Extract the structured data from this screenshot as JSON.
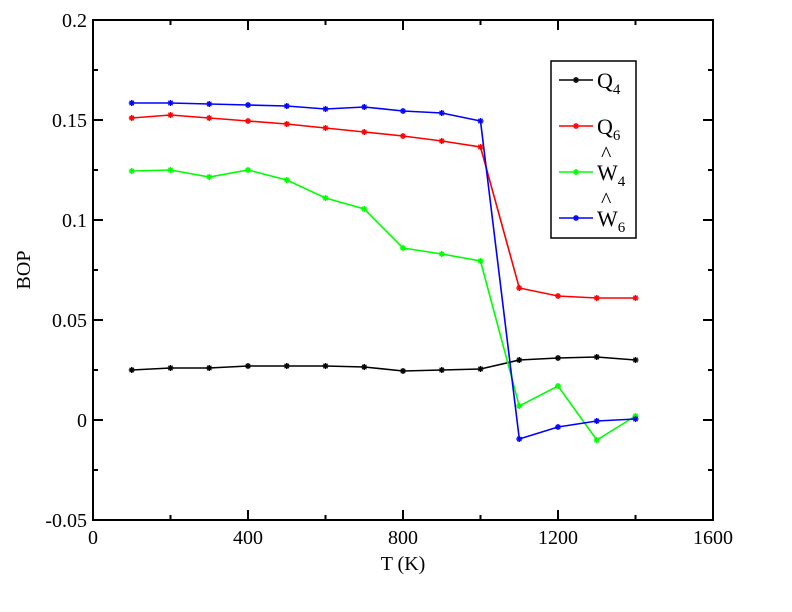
{
  "chart_data": {
    "type": "line",
    "title": "",
    "xlabel": "T (K)",
    "ylabel": "BOP",
    "xlim": [
      0,
      1600
    ],
    "ylim": [
      -0.05,
      0.2
    ],
    "xticks": [
      0,
      400,
      800,
      1200,
      1600
    ],
    "xtick_labels": [
      "0",
      "400",
      "800",
      "1200",
      "1600"
    ],
    "yticks": [
      -0.05,
      0,
      0.05,
      0.1,
      0.15,
      0.2
    ],
    "ytick_labels": [
      "-0.05",
      "0",
      "0.05",
      "0.1",
      "0.15",
      "0.2"
    ],
    "grid": false,
    "legend_position": "top-right",
    "x": [
      100,
      200,
      300,
      400,
      500,
      600,
      700,
      800,
      900,
      1000,
      1100,
      1200,
      1300,
      1400
    ],
    "series": [
      {
        "name": "Q4",
        "legend": {
          "base": "Q",
          "sub": "4",
          "hat": ""
        },
        "color": "#000000",
        "values": [
          0.025,
          0.026,
          0.026,
          0.027,
          0.027,
          0.027,
          0.0265,
          0.0245,
          0.025,
          0.0255,
          0.03,
          0.031,
          0.0315,
          0.03
        ]
      },
      {
        "name": "Q6",
        "legend": {
          "base": "Q",
          "sub": "6",
          "hat": ""
        },
        "color": "#ff0000",
        "values": [
          0.151,
          0.1525,
          0.151,
          0.1495,
          0.148,
          0.146,
          0.144,
          0.142,
          0.1395,
          0.1365,
          0.066,
          0.062,
          0.061,
          0.061
        ]
      },
      {
        "name": "W4",
        "legend": {
          "base": "W",
          "sub": "4",
          "hat": "^"
        },
        "color": "#00ff00",
        "values": [
          0.1245,
          0.125,
          0.1215,
          0.125,
          0.12,
          0.111,
          0.1055,
          0.086,
          0.083,
          0.0795,
          0.007,
          0.017,
          -0.01,
          0.002
        ]
      },
      {
        "name": "W6",
        "legend": {
          "base": "W",
          "sub": "6",
          "hat": "^"
        },
        "color": "#0000ff",
        "values": [
          0.1585,
          0.1585,
          0.158,
          0.1575,
          0.157,
          0.1555,
          0.1565,
          0.1545,
          0.1535,
          0.1495,
          -0.0095,
          -0.0035,
          -0.0005,
          0.0005
        ]
      }
    ]
  }
}
